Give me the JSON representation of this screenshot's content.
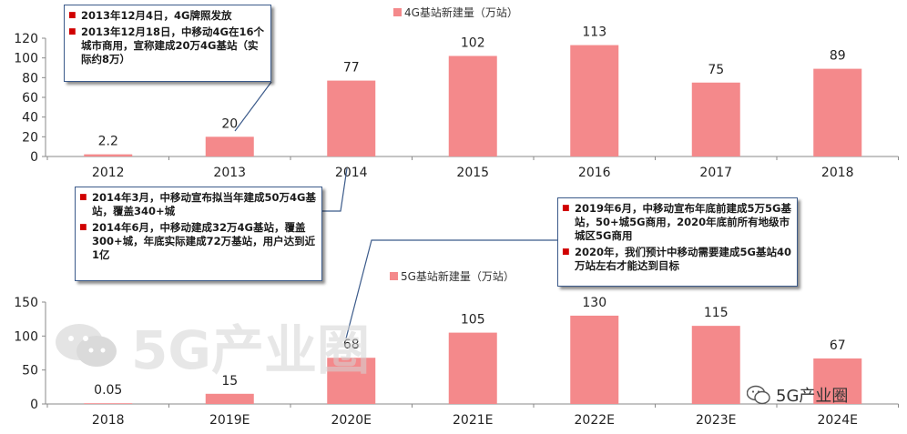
{
  "colors": {
    "bar": "#f4898b",
    "axis": "#8a8a8a",
    "callout_border": "#3b5a8a",
    "bullet": "#d00000"
  },
  "chart_data": [
    {
      "type": "bar",
      "legend": "4G基站新建量（万站）",
      "legend_position": "top-center",
      "categories": [
        "2012",
        "2013",
        "2014",
        "2015",
        "2016",
        "2017",
        "2018"
      ],
      "values": [
        2.2,
        20,
        77,
        102,
        113,
        75,
        89
      ],
      "labels": [
        "2.2",
        "20",
        "77",
        "102",
        "113",
        "75",
        "89"
      ],
      "ylim": [
        0,
        120
      ],
      "yticks": [
        "0",
        "20",
        "40",
        "60",
        "80",
        "100",
        "120"
      ],
      "grid": false
    },
    {
      "type": "bar",
      "legend": "5G基站新建量（万站）",
      "legend_position": "top-left",
      "categories": [
        "2018",
        "2019E",
        "2020E",
        "2021E",
        "2022E",
        "2023E",
        "2024E"
      ],
      "values": [
        0.05,
        15,
        68,
        105,
        130,
        115,
        67
      ],
      "labels": [
        "0.05",
        "15",
        "68",
        "105",
        "130",
        "115",
        "67"
      ],
      "ylim": [
        0,
        150
      ],
      "yticks": [
        "0",
        "50",
        "100",
        "150"
      ],
      "grid": false
    }
  ],
  "callouts": [
    {
      "items": [
        "2013年12月4日，4G牌照发放",
        "2013年12月18日，中移动4G在16个城市商用，宣称建成20万4G基站（实际约8万）"
      ]
    },
    {
      "items": [
        "2014年3月，中移动宣布拟当年建成50万4G基站，覆盖340+城",
        "2014年6月，中移动建成32万4G基站，覆盖300+城，年底实际建成72万基站，用户达到近1亿"
      ]
    },
    {
      "items": [
        "2019年6月，中移动宣布年底前建成5万5G基站，50+城5G商用，2020年底前所有地级市城区5G商用",
        "2020年，我们预计中移动需要建成5G基站40万站左右才能达到目标"
      ]
    }
  ],
  "watermark": "5G产业圈",
  "brand": "5G产业圈"
}
